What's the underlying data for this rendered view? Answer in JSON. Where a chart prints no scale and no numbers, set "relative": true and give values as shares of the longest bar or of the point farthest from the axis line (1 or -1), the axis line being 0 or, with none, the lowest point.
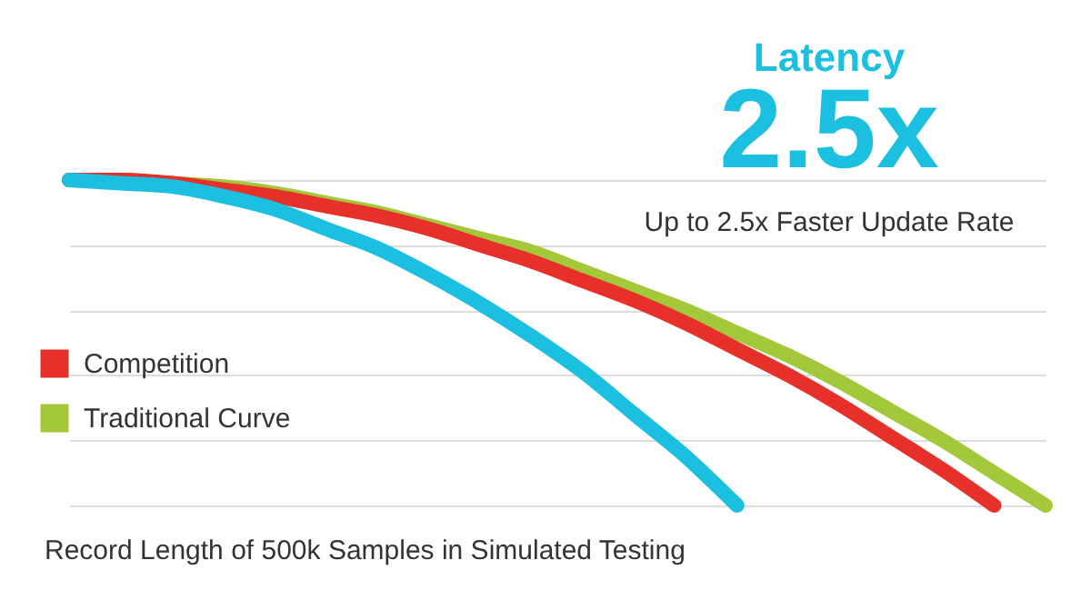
{
  "chart_data": {
    "type": "line",
    "relative": true,
    "xlabel": "Record Length of 500k Samples in Simulated Testing",
    "categories": [
      null,
      null,
      null,
      null,
      null,
      null,
      null,
      null,
      null,
      null,
      null,
      null,
      null,
      null,
      null,
      null,
      null,
      null,
      null,
      null
    ],
    "series": [
      {
        "color": "#a3c93a",
        "values": [
          1,
          1.0,
          0.99,
          0.98,
          0.96,
          0.93,
          0.9,
          0.86,
          0.82,
          0.78,
          0.72,
          0.66,
          0.6,
          0.53,
          0.46,
          0.38,
          0.29,
          0.2,
          0.1,
          0
        ],
        "name": "Traditional Curve"
      },
      {
        "color": "#e8302a",
        "values": [
          1,
          1.0,
          0.99,
          0.97,
          0.95,
          0.92,
          0.89,
          0.85,
          0.8,
          0.75,
          0.69,
          0.63,
          0.56,
          0.48,
          0.4,
          0.31,
          0.21,
          0.11,
          0,
          null
        ],
        "name": "Competition"
      },
      {
        "color": "#1bbfe0",
        "values": [
          1,
          0.99,
          0.98,
          0.95,
          0.91,
          0.85,
          0.79,
          0.71,
          0.62,
          0.52,
          0.41,
          0.28,
          0.15,
          0,
          null,
          null,
          null,
          null,
          null,
          null
        ]
      }
    ],
    "annotations": [
      "Latency",
      "2.5x",
      "Up to 2.5x Faster Update Rate"
    ],
    "grid": "y",
    "legend": "left",
    "line_style": "solid",
    "marker": "none"
  }
}
